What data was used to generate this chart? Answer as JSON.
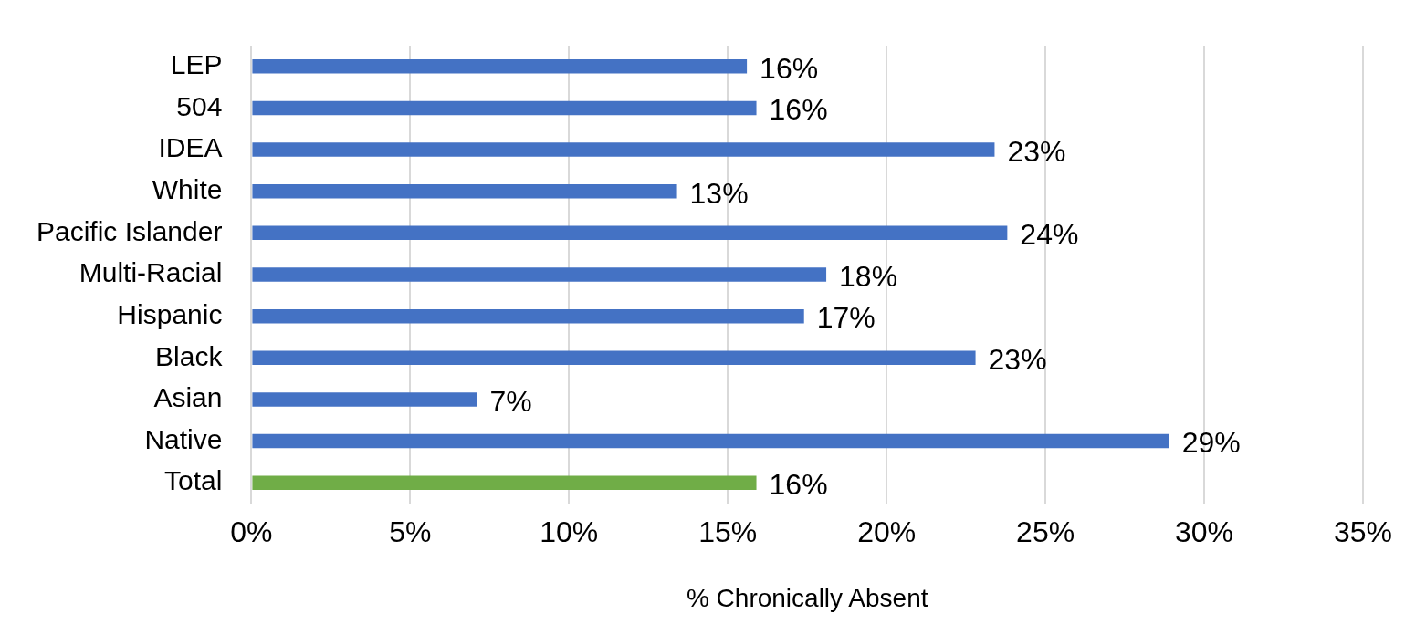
{
  "chart_data": {
    "type": "bar",
    "orientation": "horizontal",
    "xlabel": "% Chronically Absent",
    "categories": [
      "LEP",
      "504",
      "IDEA",
      "White",
      "Pacific Islander",
      "Multi-Racial",
      "Hispanic",
      "Black",
      "Asian",
      "Native",
      "Total"
    ],
    "values": [
      15.6,
      15.9,
      23.4,
      13.4,
      23.8,
      18.1,
      17.4,
      22.8,
      7.1,
      28.9,
      15.9
    ],
    "colors": [
      "#4472c4",
      "#4472c4",
      "#4472c4",
      "#4472c4",
      "#4472c4",
      "#4472c4",
      "#4472c4",
      "#4472c4",
      "#4472c4",
      "#4472c4",
      "#70ad47"
    ],
    "value_labels": [
      "16%",
      "16%",
      "23%",
      "13%",
      "24%",
      "18%",
      "17%",
      "23%",
      "7%",
      "29%",
      "16%"
    ],
    "xlim": [
      0,
      35
    ],
    "xticks": [
      {
        "value": 0,
        "label": "0%"
      },
      {
        "value": 5,
        "label": "5%"
      },
      {
        "value": 10,
        "label": "10%"
      },
      {
        "value": 15,
        "label": "15%"
      },
      {
        "value": 20,
        "label": "20%"
      },
      {
        "value": 25,
        "label": "25%"
      },
      {
        "value": 30,
        "label": "30%"
      },
      {
        "value": 35,
        "label": "35%"
      }
    ],
    "grid": "x",
    "legend": false
  }
}
